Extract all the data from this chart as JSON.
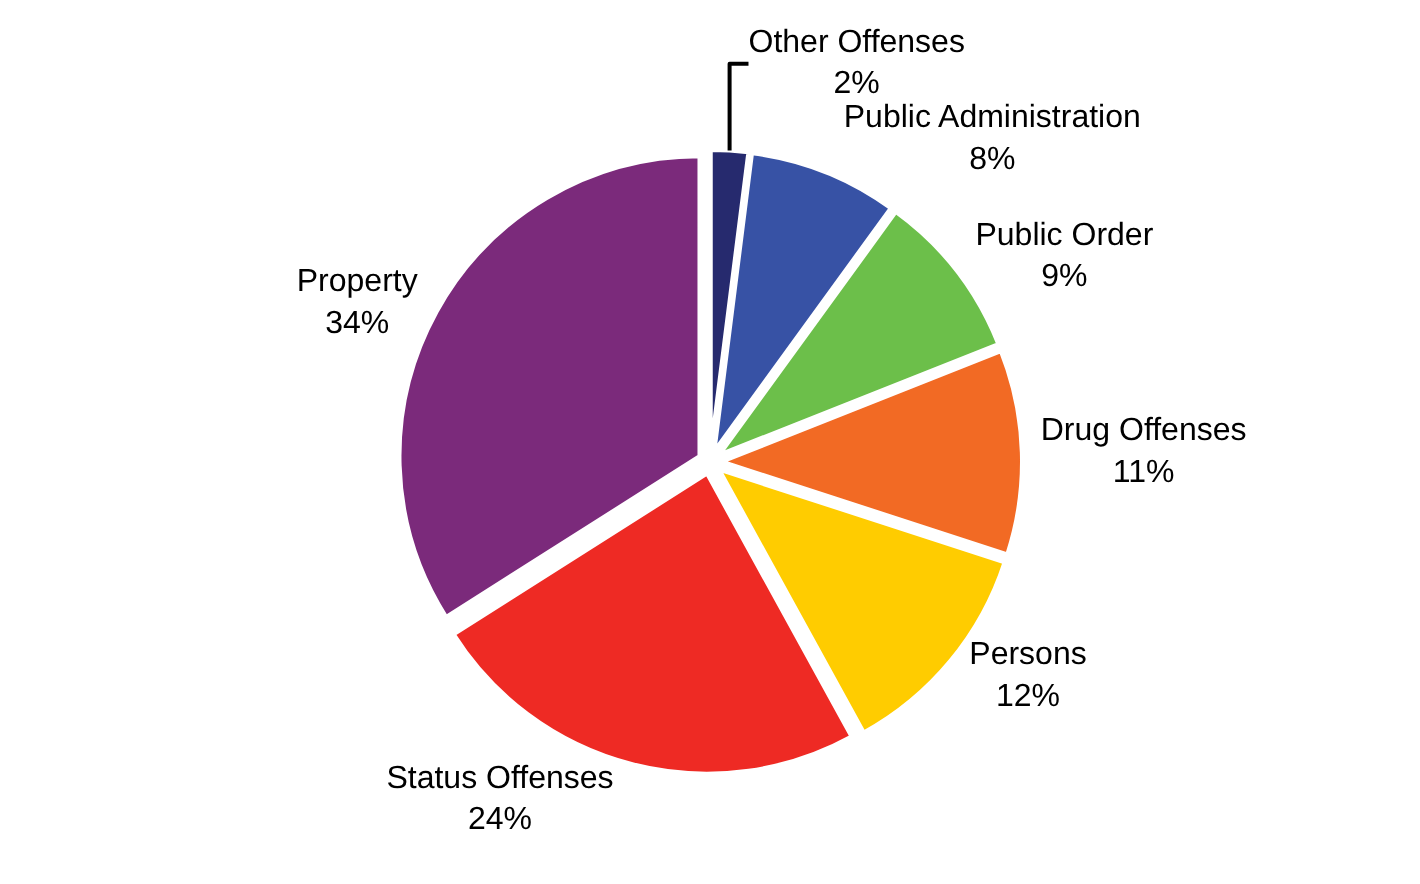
{
  "chart_data": {
    "type": "pie",
    "categories": [
      "Other Offenses",
      "Public Administration",
      "Public Order",
      "Drug Offenses",
      "Persons",
      "Status Offenses",
      "Property"
    ],
    "values": [
      2,
      8,
      9,
      11,
      12,
      24,
      34
    ],
    "value_labels": [
      "2%",
      "8%",
      "9%",
      "11%",
      "12%",
      "24%",
      "34%"
    ],
    "colors": [
      "#262a6e",
      "#3752a5",
      "#6cbf4a",
      "#f26a24",
      "#ffcc00",
      "#ee2a24",
      "#7b2a7b"
    ],
    "legend": false
  }
}
